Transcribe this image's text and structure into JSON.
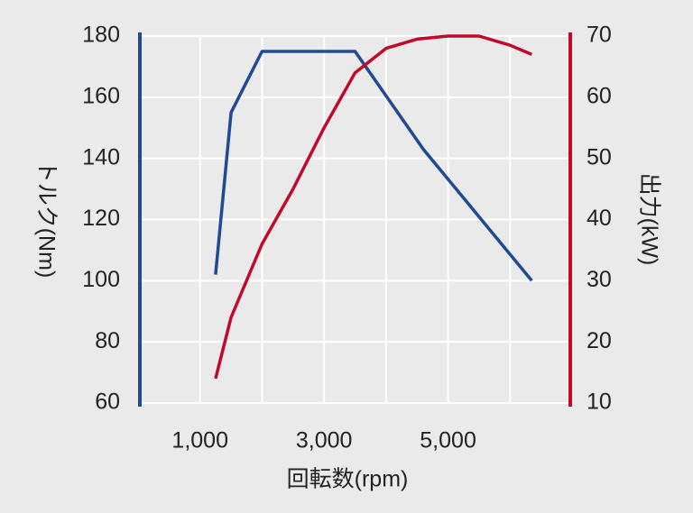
{
  "chart_data": {
    "type": "line",
    "xlabel": "回転数(rpm)",
    "ylabel": "トルク(Nm)",
    "y2label": "出力(kW)",
    "xlim": [
      0,
      7000
    ],
    "xticks": [
      {
        "value": 1000,
        "label": "1,000"
      },
      {
        "value": 3000,
        "label": "3,000"
      },
      {
        "value": 5000,
        "label": "5,000"
      }
    ],
    "xgrid": [
      1000,
      2000,
      3000,
      4000,
      5000,
      6000
    ],
    "ylim": [
      60,
      180
    ],
    "yticks": [
      60,
      80,
      100,
      120,
      140,
      160,
      180
    ],
    "y2lim": [
      10,
      70
    ],
    "y2ticks": [
      10,
      20,
      30,
      40,
      50,
      60,
      70
    ],
    "grid": true,
    "series": [
      {
        "name": "トルク",
        "color": "#1f4a94",
        "axis": "y",
        "x": [
          1250,
          1500,
          2000,
          3500,
          4600,
          6350
        ],
        "values": [
          102,
          155,
          175,
          175,
          143,
          100
        ]
      },
      {
        "name": "出力",
        "color": "#c00a2c",
        "axis": "y2",
        "x": [
          1250,
          1500,
          2000,
          2500,
          3000,
          3500,
          4000,
          4500,
          5000,
          5500,
          6000,
          6350
        ],
        "values": [
          14,
          24,
          36,
          45,
          55,
          64,
          68,
          69.5,
          70,
          70,
          68.5,
          67
        ]
      }
    ]
  }
}
